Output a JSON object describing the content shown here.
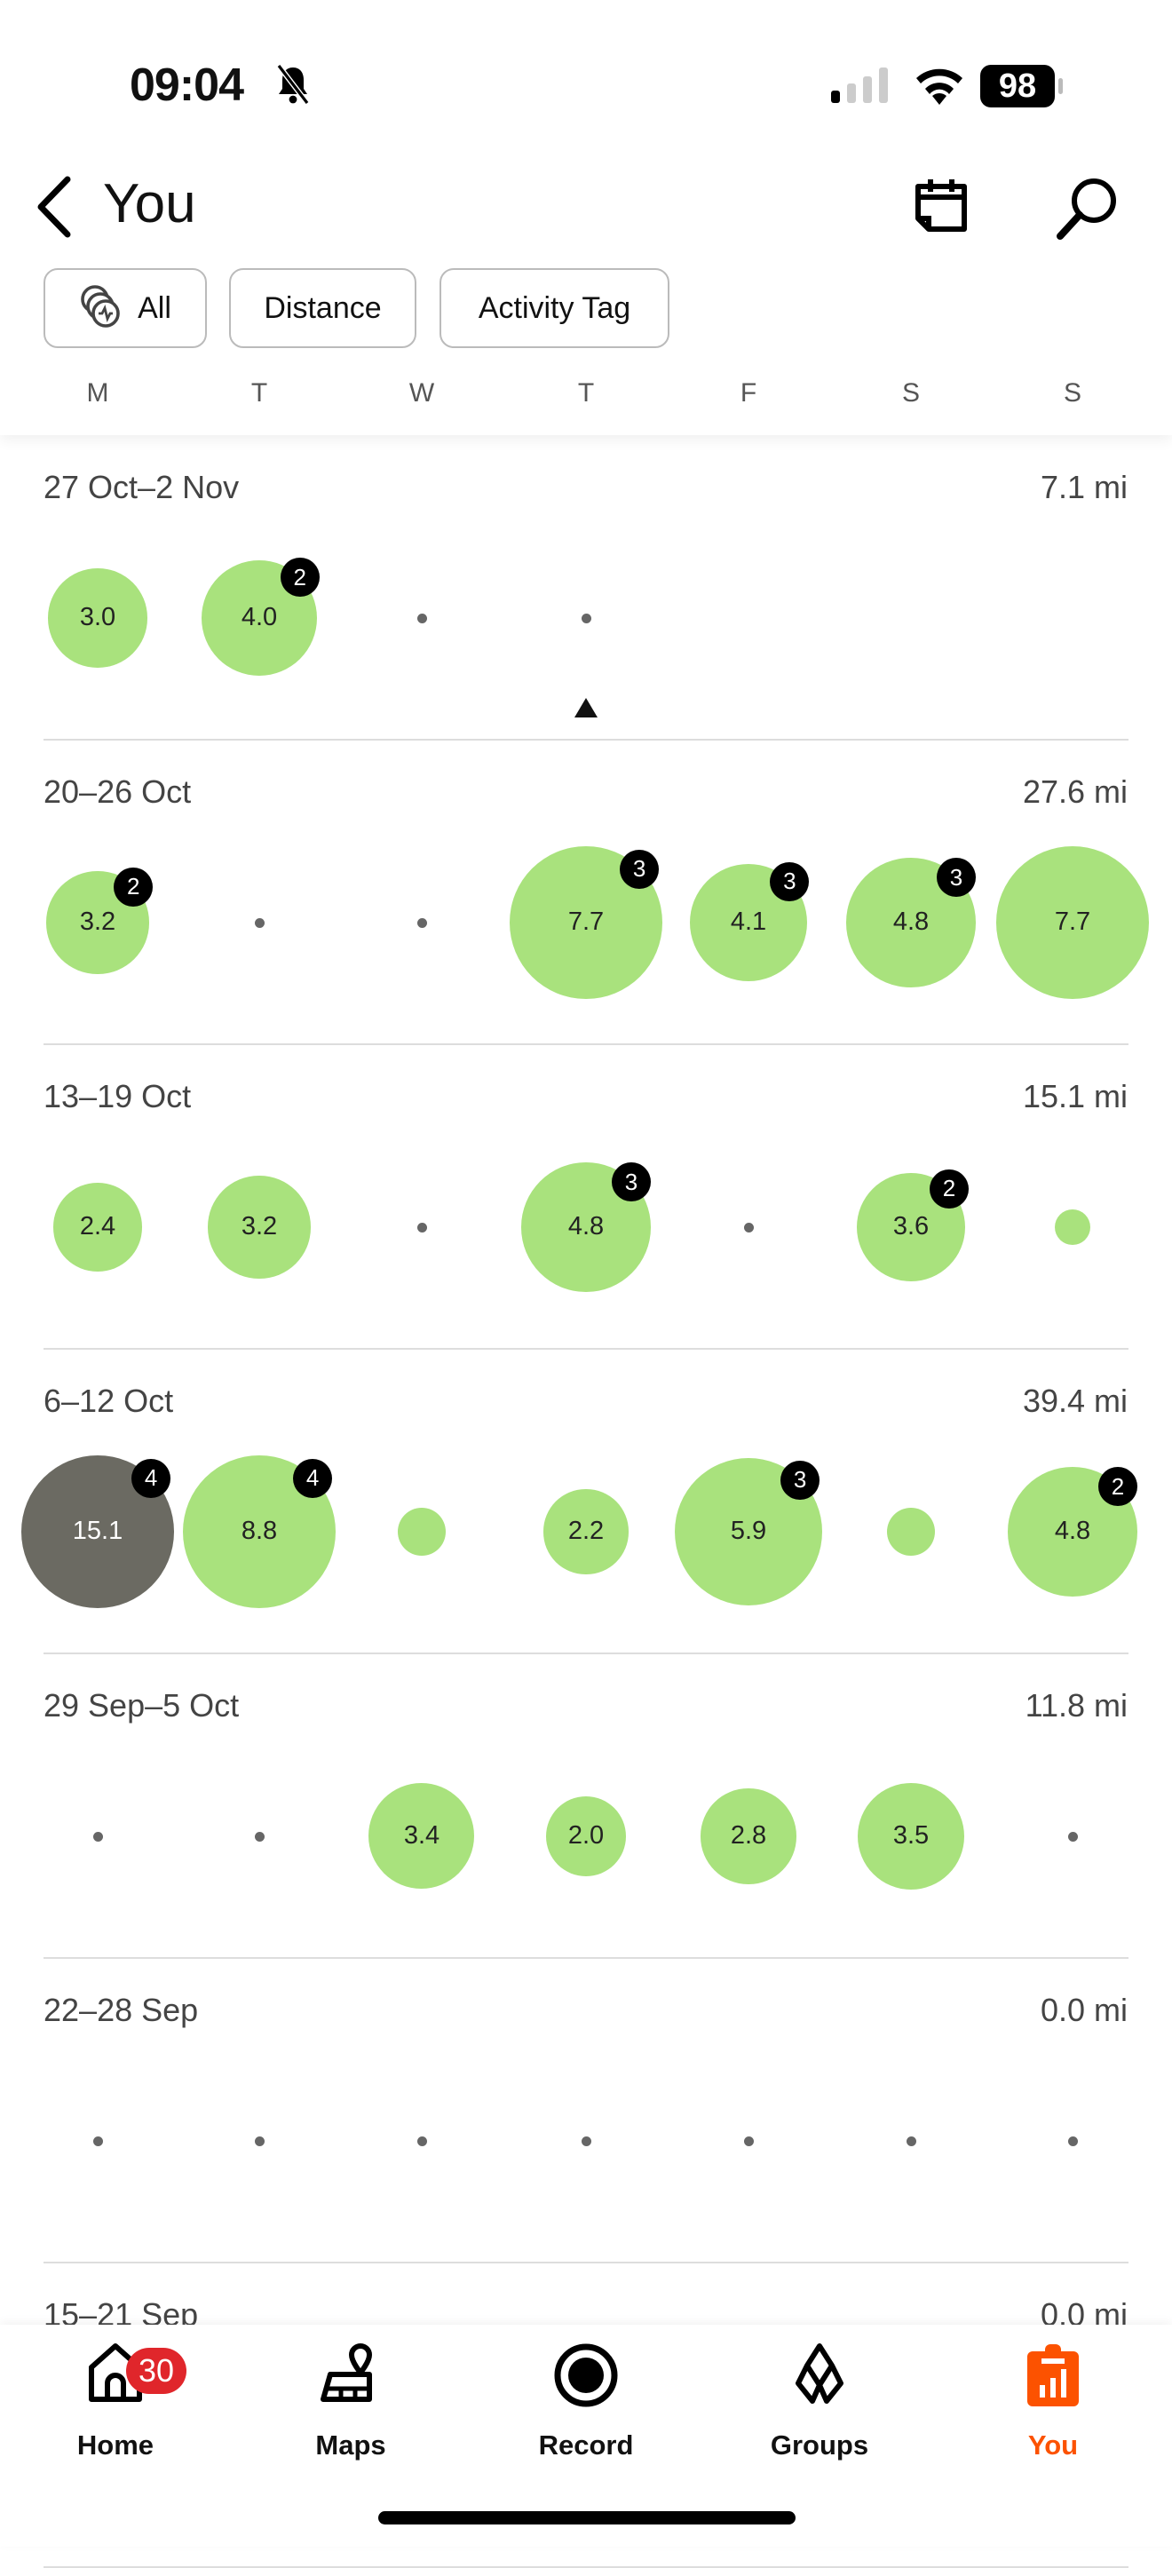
{
  "status_bar": {
    "time": "09:04",
    "battery": "98",
    "icons": [
      "bell-slash-icon",
      "signal-icon",
      "wifi-icon",
      "battery-icon"
    ]
  },
  "header": {
    "title": "You",
    "back_icon": "chevron-left-icon",
    "calendar_icon": "calendar-icon",
    "search_icon": "search-icon"
  },
  "filters": [
    {
      "label": "All",
      "icon": "activities-stack-icon"
    },
    {
      "label": "Distance"
    },
    {
      "label": "Activity Tag"
    }
  ],
  "day_letters": [
    "M",
    "T",
    "W",
    "T",
    "F",
    "S",
    "S"
  ],
  "colors": {
    "bubble": "#a9e27d",
    "bubble_highlight": "#6b6a62",
    "accent": "#fc5200",
    "badge": "#000000",
    "notification": "#e0262b"
  },
  "weeks": [
    {
      "title": "27 Oct–2 Nov",
      "total": "7.1 mi",
      "today_index": 3,
      "days": [
        {
          "value": "3.0"
        },
        {
          "value": "4.0",
          "badge": "2"
        },
        {
          "type": "rest"
        },
        {
          "type": "rest"
        },
        {
          "type": "none"
        },
        {
          "type": "none"
        },
        {
          "type": "none"
        }
      ]
    },
    {
      "title": "20–26 Oct",
      "total": "27.6 mi",
      "days": [
        {
          "value": "3.2",
          "badge": "2"
        },
        {
          "type": "rest"
        },
        {
          "type": "rest"
        },
        {
          "value": "7.7",
          "badge": "3"
        },
        {
          "value": "4.1",
          "badge": "3"
        },
        {
          "value": "4.8",
          "badge": "3"
        },
        {
          "value": "7.7"
        }
      ]
    },
    {
      "title": "13–19 Oct",
      "total": "15.1 mi",
      "days": [
        {
          "value": "2.4"
        },
        {
          "value": "3.2"
        },
        {
          "type": "rest"
        },
        {
          "value": "4.8",
          "badge": "3"
        },
        {
          "type": "rest"
        },
        {
          "value": "3.6",
          "badge": "2"
        },
        {
          "type": "small"
        }
      ]
    },
    {
      "title": "6–12 Oct",
      "total": "39.4 mi",
      "days": [
        {
          "value": "15.1",
          "badge": "4",
          "highlight": true
        },
        {
          "value": "8.8",
          "badge": "4"
        },
        {
          "type": "small"
        },
        {
          "value": "2.2"
        },
        {
          "value": "5.9",
          "badge": "3"
        },
        {
          "type": "small"
        },
        {
          "value": "4.8",
          "badge": "2"
        }
      ]
    },
    {
      "title": "29 Sep–5 Oct",
      "total": "11.8 mi",
      "days": [
        {
          "type": "rest"
        },
        {
          "type": "rest"
        },
        {
          "value": "3.4"
        },
        {
          "value": "2.0"
        },
        {
          "value": "2.8"
        },
        {
          "value": "3.5"
        },
        {
          "type": "rest"
        }
      ]
    },
    {
      "title": "22–28 Sep",
      "total": "0.0 mi",
      "days": [
        {
          "type": "rest"
        },
        {
          "type": "rest"
        },
        {
          "type": "rest"
        },
        {
          "type": "rest"
        },
        {
          "type": "rest"
        },
        {
          "type": "rest"
        },
        {
          "type": "rest"
        }
      ]
    },
    {
      "title": "15–21 Sep",
      "total": "0.0 mi",
      "days": []
    }
  ],
  "bottom_nav": [
    {
      "label": "Home",
      "icon": "home-icon",
      "badge": "30"
    },
    {
      "label": "Maps",
      "icon": "map-icon"
    },
    {
      "label": "Record",
      "icon": "record-icon"
    },
    {
      "label": "Groups",
      "icon": "groups-icon"
    },
    {
      "label": "You",
      "icon": "you-icon",
      "active": true
    }
  ]
}
